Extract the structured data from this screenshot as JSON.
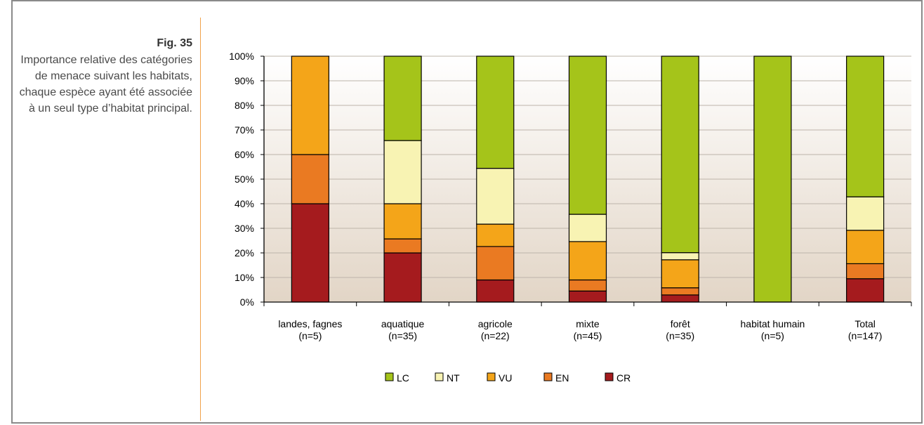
{
  "caption": {
    "fig_label": "Fig. 35",
    "text": "Importance relative des catégories de menace suivant les habitats, chaque espèce ayant été associée à un seul type d’habitat principal."
  },
  "colors": {
    "LC": "#a5c41a",
    "NT": "#f8f3b3",
    "VU": "#f4a519",
    "EN": "#ea7a22",
    "CR": "#a51b1e"
  },
  "chart_data": {
    "type": "bar",
    "stacked": true,
    "percent_scale": true,
    "categories": [
      [
        "landes, fagnes",
        "(n=5)"
      ],
      [
        "aquatique",
        "(n=35)"
      ],
      [
        "agricole",
        "(n=22)"
      ],
      [
        "mixte",
        "(n=45)"
      ],
      [
        "forêt",
        "(n=35)"
      ],
      [
        "habitat humain",
        "(n=5)"
      ],
      [
        "Total",
        "(n=147)"
      ]
    ],
    "series": [
      {
        "name": "CR",
        "values": [
          40,
          20,
          9,
          4.5,
          2.9,
          0,
          9.5
        ]
      },
      {
        "name": "EN",
        "values": [
          20,
          5.7,
          13.6,
          4.5,
          2.9,
          0,
          6.1
        ]
      },
      {
        "name": "VU",
        "values": [
          40,
          14.3,
          9.1,
          15.6,
          11.4,
          0,
          13.6
        ]
      },
      {
        "name": "NT",
        "values": [
          0,
          25.7,
          22.7,
          11.1,
          2.9,
          0,
          13.6
        ]
      },
      {
        "name": "LC",
        "values": [
          0,
          34.3,
          45.6,
          64.3,
          79.9,
          100,
          57.2
        ]
      }
    ],
    "legend_order": [
      "LC",
      "NT",
      "VU",
      "EN",
      "CR"
    ],
    "legend_position": "bottom",
    "yticks": [
      "0%",
      "10%",
      "20%",
      "30%",
      "40%",
      "50%",
      "60%",
      "70%",
      "80%",
      "90%",
      "100%"
    ],
    "ylim": [
      0,
      100
    ],
    "xlabel": "",
    "ylabel": ""
  }
}
